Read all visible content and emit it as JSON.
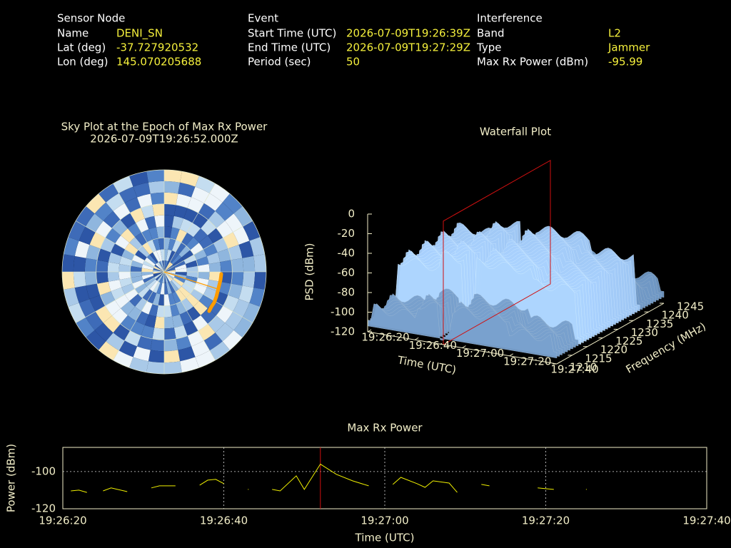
{
  "info": {
    "sensor": {
      "title": "Sensor Node",
      "rows": [
        [
          "Name",
          "DENI_SN"
        ],
        [
          "Lat (deg)",
          "-37.727920532"
        ],
        [
          "Lon (deg)",
          "145.070205688"
        ]
      ]
    },
    "event": {
      "title": "Event",
      "rows": [
        [
          "Start Time (UTC)",
          "2026-07-09T19:26:39Z"
        ],
        [
          "End Time (UTC)",
          "2026-07-09T19:27:29Z"
        ],
        [
          "Period (sec)",
          "50"
        ]
      ]
    },
    "interference": {
      "title": "Interference",
      "rows": [
        [
          "Band",
          "L2"
        ],
        [
          "Type",
          "Jammer"
        ],
        [
          "Max Rx Power (dBm)",
          "-95.99"
        ]
      ]
    }
  },
  "chart_data": [
    {
      "type": "polar",
      "title": "Sky Plot at the Epoch of Max Rx Power",
      "subtitle": "2026-07-09T19:26:52.000Z"
    },
    {
      "type": "surface",
      "title": "Waterfall Plot",
      "x_label": "Time (UTC)",
      "y_label": "Frequency (MHz)",
      "z_label": "PSD (dBm)",
      "xlim": [
        "19:26:20",
        "19:27:40"
      ],
      "xticks": [
        "19:26:20",
        "19:26:40",
        "19:27:00",
        "19:27:20",
        "19:27:40"
      ],
      "ylim": [
        1210,
        1245
      ],
      "yticks": [
        1210,
        1215,
        1220,
        1225,
        1230,
        1235,
        1240,
        1245
      ],
      "zlim": [
        -120,
        0
      ],
      "zticks": [
        0,
        -20,
        -40,
        -60,
        -80,
        -100,
        -120
      ],
      "plane_x": "19:26:52",
      "plane_color": "#d01010"
    },
    {
      "type": "line",
      "title": "Max Rx Power",
      "x_label": "Time (UTC)",
      "y_label": "Power (dBm)",
      "xlim": [
        "19:26:20",
        "19:27:40"
      ],
      "xticks": [
        "19:26:20",
        "19:26:40",
        "19:27:00",
        "19:27:20",
        "19:27:40"
      ],
      "ylim": [
        -120,
        -87
      ],
      "yticks": [
        -120,
        -100
      ],
      "grid": true,
      "color": "#f0f000",
      "vline": "19:26:52",
      "vline_color": "#d01010",
      "x": [
        "19:26:21",
        "19:26:22",
        "19:26:23",
        "19:26:24",
        "19:26:25",
        "19:26:26",
        "19:26:28",
        "19:26:30",
        "19:26:31",
        "19:26:32",
        "19:26:34",
        "19:26:35",
        "19:26:37",
        "19:26:38",
        "19:26:39",
        "19:26:40",
        "19:26:42",
        "19:26:43",
        "19:26:44",
        "19:26:46",
        "19:26:47",
        "19:26:49",
        "19:26:50",
        "19:26:52",
        "19:26:54",
        "19:26:56",
        "19:26:58",
        "19:27:00",
        "19:27:01",
        "19:27:02",
        "19:27:04",
        "19:27:05",
        "19:27:06",
        "19:27:08",
        "19:27:09",
        "19:27:11",
        "19:27:12",
        "19:27:13",
        "19:27:16",
        "19:27:19",
        "19:27:20",
        "19:27:21",
        "19:27:23",
        "19:27:25"
      ],
      "values": [
        -110.4,
        -110,
        -111.2,
        null,
        -110.4,
        -108.8,
        -110.8,
        null,
        -108.8,
        -107.7,
        -107.7,
        null,
        -107.3,
        -104.6,
        -104.2,
        -106.5,
        null,
        -109.6,
        null,
        -109.6,
        -110.4,
        -102.3,
        -109.6,
        -95.99,
        -101.5,
        -105,
        -107.7,
        null,
        -106.9,
        -103.1,
        -106.5,
        -108.5,
        -105,
        -106.2,
        -111.2,
        null,
        -106.9,
        -107.7,
        null,
        -108.8,
        -109.2,
        -109.6,
        null,
        -109.6
      ]
    }
  ]
}
